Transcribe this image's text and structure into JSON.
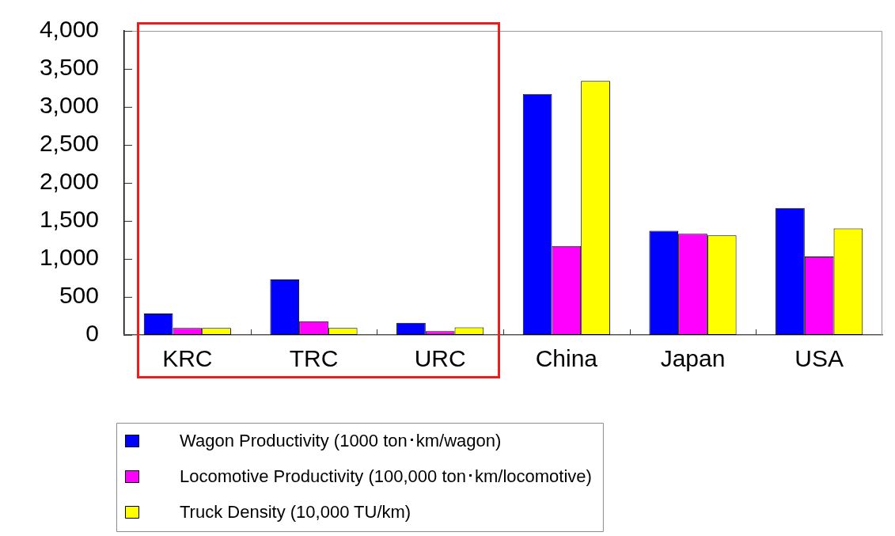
{
  "chart_data": {
    "type": "bar",
    "categories": [
      "KRC",
      "TRC",
      "URC",
      "China",
      "Japan",
      "USA"
    ],
    "series": [
      {
        "name": "Wagon Productivity (1000 ton･km/wagon)",
        "color": "#0000ff",
        "values": [
          280,
          730,
          160,
          3170,
          1370,
          1670
        ]
      },
      {
        "name": "Locomotive Productivity (100,000 ton･km/locomotive)",
        "color": "#ff00ff",
        "values": [
          90,
          180,
          50,
          1170,
          1330,
          1030
        ]
      },
      {
        "name": "Truck Density (10,000 TU/km)",
        "color": "#ffff00",
        "values": [
          90,
          90,
          100,
          3340,
          1310,
          1400
        ]
      }
    ],
    "ylim": [
      0,
      4000
    ],
    "yticks": [
      0,
      500,
      {
        "value": 1000,
        "label": "1,000"
      },
      {
        "value": 1500,
        "label": "1,500"
      },
      {
        "value": 2000,
        "label": "2,000"
      },
      {
        "value": 2500,
        "label": "2,500"
      },
      {
        "value": 3000,
        "label": "3,000"
      },
      {
        "value": 3500,
        "label": "3,500"
      },
      {
        "value": 4000,
        "label": "4,000"
      }
    ],
    "legend": "bottom"
  }
}
